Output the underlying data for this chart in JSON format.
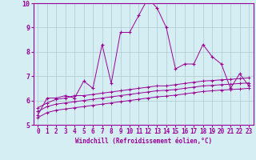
{
  "xlabel": "Windchill (Refroidissement éolien,°C)",
  "x": [
    0,
    1,
    2,
    3,
    4,
    5,
    6,
    7,
    8,
    9,
    10,
    11,
    12,
    13,
    14,
    15,
    16,
    17,
    18,
    19,
    20,
    21,
    22,
    23
  ],
  "line1": [
    5.4,
    6.1,
    6.1,
    6.2,
    6.1,
    6.8,
    6.5,
    8.3,
    6.7,
    8.8,
    8.8,
    9.5,
    10.2,
    9.8,
    9.0,
    7.3,
    7.5,
    7.5,
    8.3,
    7.8,
    7.5,
    6.5,
    7.1,
    6.6
  ],
  "line2": [
    5.7,
    5.9,
    6.05,
    6.1,
    6.2,
    6.2,
    6.25,
    6.3,
    6.35,
    6.4,
    6.45,
    6.5,
    6.55,
    6.6,
    6.6,
    6.65,
    6.7,
    6.75,
    6.8,
    6.82,
    6.85,
    6.87,
    6.9,
    6.93
  ],
  "line3": [
    5.55,
    5.75,
    5.85,
    5.9,
    5.95,
    6.0,
    6.05,
    6.1,
    6.15,
    6.2,
    6.25,
    6.3,
    6.35,
    6.4,
    6.42,
    6.45,
    6.5,
    6.55,
    6.6,
    6.62,
    6.65,
    6.67,
    6.7,
    6.72
  ],
  "line4": [
    5.3,
    5.5,
    5.6,
    5.65,
    5.7,
    5.75,
    5.8,
    5.85,
    5.9,
    5.95,
    6.0,
    6.05,
    6.1,
    6.15,
    6.18,
    6.22,
    6.27,
    6.32,
    6.37,
    6.4,
    6.43,
    6.45,
    6.47,
    6.5
  ],
  "line_color": "#990099",
  "bg_color": "#d4eef4",
  "grid_color": "#b0c8d0",
  "ylim": [
    5,
    10
  ],
  "yticks": [
    5,
    6,
    7,
    8,
    9,
    10
  ],
  "xticks": [
    0,
    1,
    2,
    3,
    4,
    5,
    6,
    7,
    8,
    9,
    10,
    11,
    12,
    13,
    14,
    15,
    16,
    17,
    18,
    19,
    20,
    21,
    22,
    23
  ]
}
